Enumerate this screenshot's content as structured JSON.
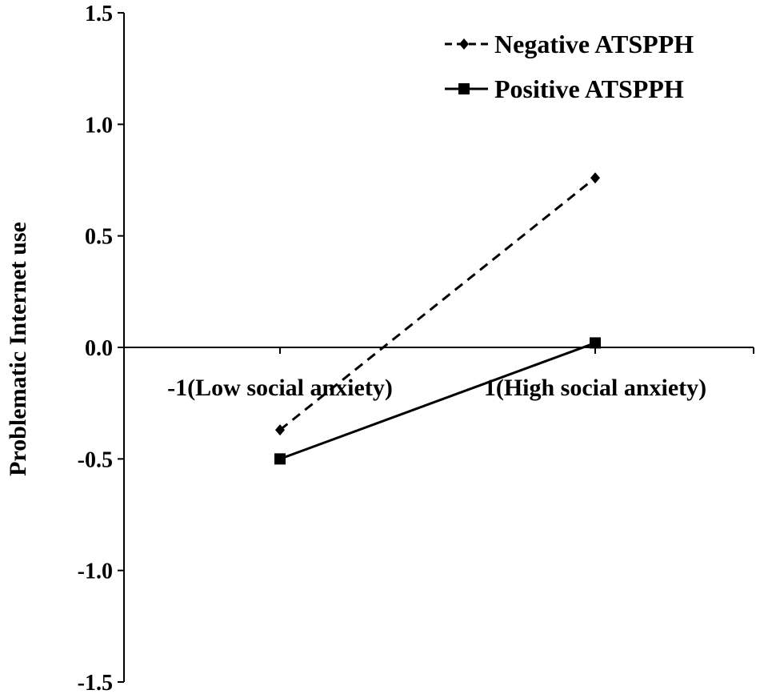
{
  "chart_data": {
    "type": "line",
    "ylabel": "Problematic Internet use",
    "xlabel": "",
    "categories": [
      "-1(Low social anxiety)",
      "1(High social anxiety)"
    ],
    "ylim": [
      -1.5,
      1.5
    ],
    "yticks": [
      1.5,
      1.0,
      0.5,
      0.0,
      -0.5,
      -1.0,
      -1.5
    ],
    "ytick_labels": [
      "1.5",
      "1.0",
      "0.5",
      "0.0",
      "-0.5",
      "-1.0",
      "-1.5"
    ],
    "legend_position": "top-right",
    "grid": false,
    "series": [
      {
        "name": "Negative ATSPPH",
        "values": [
          -0.37,
          0.76
        ],
        "line_style": "dashed",
        "marker": "diamond",
        "color": "#000000"
      },
      {
        "name": "Positive ATSPPH",
        "values": [
          -0.5,
          0.02
        ],
        "line_style": "solid",
        "marker": "square",
        "color": "#000000"
      }
    ]
  }
}
